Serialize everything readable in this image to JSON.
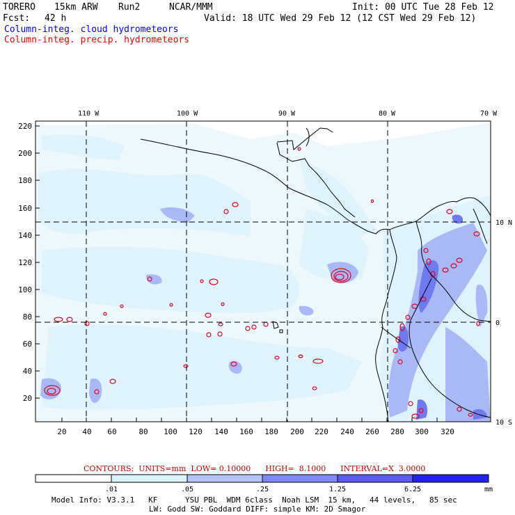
{
  "header": {
    "model": "TORERO",
    "resolution": "15km ARW",
    "run": "Run2",
    "org": "NCAR/MMM",
    "init": "Init: 00 UTC Tue 28 Feb 12",
    "fcst_label": "Fcst:",
    "fcst_value": "42 h",
    "valid": "Valid: 18 UTC Wed 29 Feb 12 (12 CST Wed 29 Feb 12)",
    "line_cloud": "Column-integ. cloud hydrometeors",
    "line_precip": "Column-integ. precip. hydrometeors"
  },
  "map": {
    "top_lon_labels": [
      "110 W",
      "100 W",
      "90 W",
      "80 W",
      "70 W"
    ],
    "right_lat_labels": [
      "10 N",
      "0",
      "10 S"
    ],
    "left_grid_ticks": [
      "220",
      "200",
      "180",
      "160",
      "140",
      "120",
      "100",
      "80",
      "60",
      "40",
      "20"
    ],
    "bottom_grid_ticks": [
      "20",
      "40",
      "60",
      "80",
      "100",
      "120",
      "140",
      "160",
      "180",
      "200",
      "220",
      "240",
      "260",
      "280",
      "300",
      "320"
    ],
    "colors": {
      "coast": "#000000",
      "shade_light": "#dff3fc",
      "shade_mid": "#a9b9f5",
      "shade_dark": "#6f7af0",
      "contour": "#e00020",
      "grid": "#000000"
    }
  },
  "contour_info": {
    "text": "CONTOURS:  UNITS=mm  LOW= 0.10000      HIGH=  8.1000      INTERVAL=X  3.0000"
  },
  "colorbar": {
    "thresholds": [
      ".01",
      ".05",
      ".25",
      "1.25",
      "6.25"
    ],
    "unit": "mm",
    "colors": [
      "#ffffff",
      "#d9f3fb",
      "#b2c4f7",
      "#7e88f2",
      "#5b5cef",
      "#2323ee"
    ]
  },
  "model_info": {
    "line1": "Model Info: V3.3.1   KF      YSU PBL  WDM 6class  Noah LSM  15 km,   44 levels,   85 sec",
    "line2": "LW: Godd SW: Goddard DIFF: simple KM: 2D Smagor"
  }
}
